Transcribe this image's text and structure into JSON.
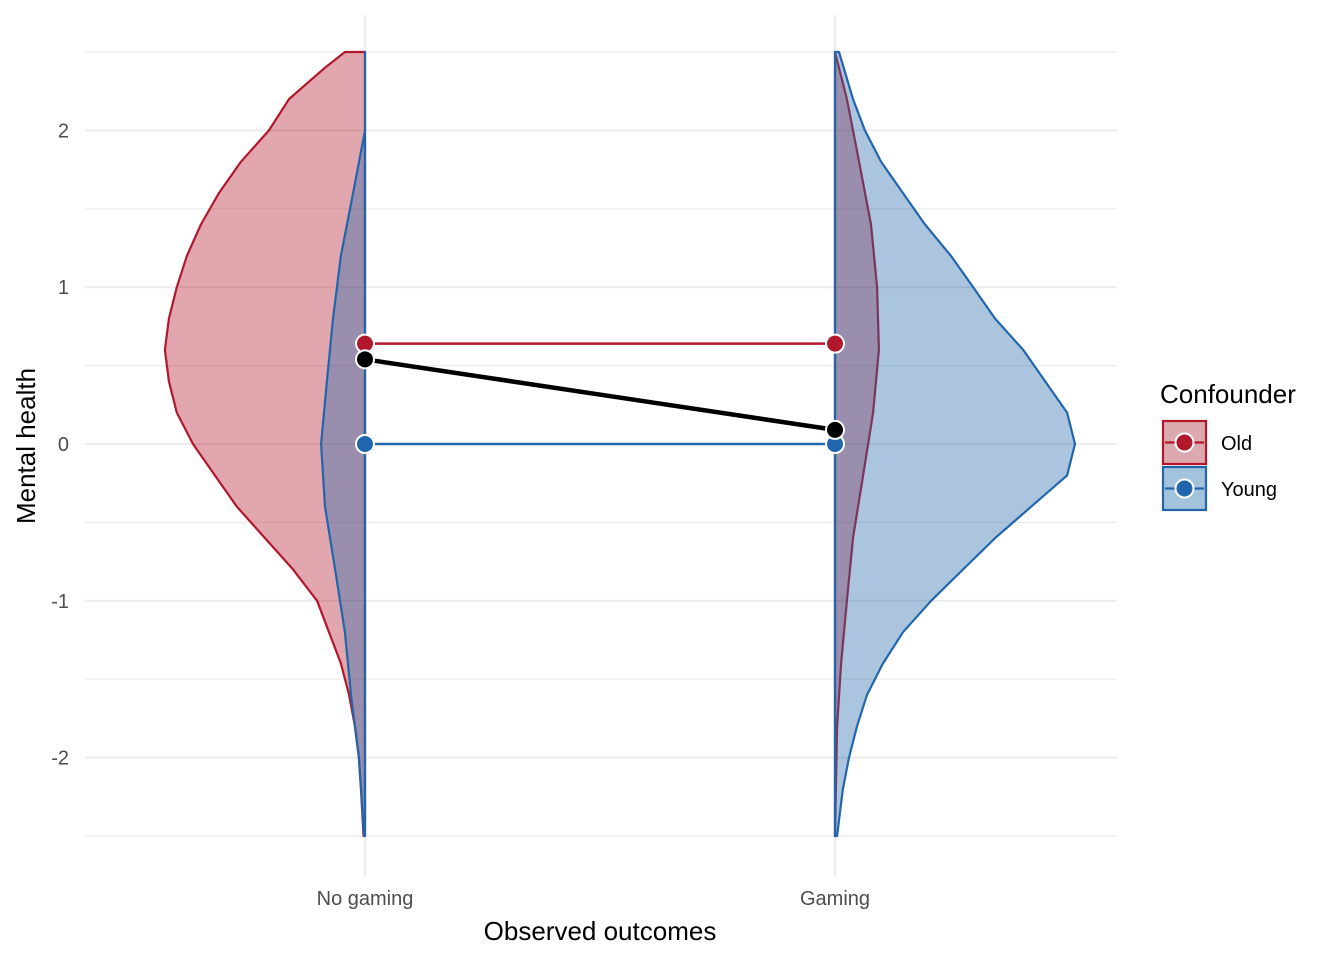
{
  "chart_data": {
    "type": "violin",
    "xlabel": "Observed outcomes",
    "ylabel": "Mental health",
    "categories": [
      "No gaming",
      "Gaming"
    ],
    "ylim": [
      -2.5,
      2.5
    ],
    "yticks": [
      -2,
      -1,
      0,
      1,
      2
    ],
    "grid": true,
    "legend": {
      "title": "Confounder",
      "position": "right",
      "entries": [
        {
          "label": "Old",
          "color": "#b2182b"
        },
        {
          "label": "Young",
          "color": "#2166ac"
        }
      ]
    },
    "series": [
      {
        "name": "Old",
        "color": "#b2182b",
        "fill": "#dca9af",
        "points": [
          0.64,
          0.64
        ]
      },
      {
        "name": "Young",
        "color": "#2166ac",
        "fill": "#a3c2dc",
        "points": [
          0.0,
          0.0
        ]
      }
    ],
    "overall": {
      "color": "#000000",
      "points": [
        0.54,
        0.09
      ]
    },
    "densities": [
      {
        "category": "No gaming",
        "group": "Old",
        "side": "left",
        "profile": [
          [
            2.5,
            0.066
          ],
          [
            2.4,
            0.131
          ],
          [
            2.2,
            0.249
          ],
          [
            2.0,
            0.315
          ],
          [
            1.8,
            0.407
          ],
          [
            1.6,
            0.479
          ],
          [
            1.4,
            0.538
          ],
          [
            1.2,
            0.584
          ],
          [
            1.0,
            0.617
          ],
          [
            0.8,
            0.643
          ],
          [
            0.6,
            0.656
          ],
          [
            0.4,
            0.643
          ],
          [
            0.2,
            0.617
          ],
          [
            0.0,
            0.564
          ],
          [
            -0.2,
            0.492
          ],
          [
            -0.4,
            0.42
          ],
          [
            -0.6,
            0.328
          ],
          [
            -0.8,
            0.236
          ],
          [
            -1.0,
            0.157
          ],
          [
            -1.2,
            0.118
          ],
          [
            -1.4,
            0.079
          ],
          [
            -1.6,
            0.052
          ],
          [
            -1.8,
            0.033
          ],
          [
            -2.0,
            0.02
          ],
          [
            -2.2,
            0.013
          ],
          [
            -2.5,
            0.005
          ]
        ]
      },
      {
        "category": "No gaming",
        "group": "Young",
        "side": "left",
        "profile": [
          [
            2.5,
            0.0
          ],
          [
            2.0,
            0.0
          ],
          [
            1.6,
            0.039
          ],
          [
            1.2,
            0.079
          ],
          [
            0.8,
            0.105
          ],
          [
            0.4,
            0.125
          ],
          [
            0.0,
            0.144
          ],
          [
            -0.4,
            0.131
          ],
          [
            -0.8,
            0.098
          ],
          [
            -1.2,
            0.066
          ],
          [
            -1.6,
            0.046
          ],
          [
            -2.0,
            0.02
          ],
          [
            -2.5,
            0.003
          ]
        ]
      },
      {
        "category": "Gaming",
        "group": "Old",
        "side": "right",
        "profile": [
          [
            2.5,
            0.0
          ],
          [
            2.2,
            0.039
          ],
          [
            1.8,
            0.079
          ],
          [
            1.4,
            0.118
          ],
          [
            1.0,
            0.138
          ],
          [
            0.6,
            0.144
          ],
          [
            0.2,
            0.125
          ],
          [
            -0.2,
            0.092
          ],
          [
            -0.6,
            0.059
          ],
          [
            -1.0,
            0.039
          ],
          [
            -1.4,
            0.02
          ],
          [
            -1.8,
            0.007
          ],
          [
            -2.5,
            0.0
          ]
        ]
      },
      {
        "category": "Gaming",
        "group": "Young",
        "side": "right",
        "profile": [
          [
            2.5,
            0.013
          ],
          [
            2.2,
            0.059
          ],
          [
            2.0,
            0.098
          ],
          [
            1.8,
            0.151
          ],
          [
            1.6,
            0.223
          ],
          [
            1.4,
            0.295
          ],
          [
            1.2,
            0.38
          ],
          [
            1.0,
            0.453
          ],
          [
            0.8,
            0.525
          ],
          [
            0.6,
            0.617
          ],
          [
            0.4,
            0.689
          ],
          [
            0.2,
            0.761
          ],
          [
            0.0,
            0.787
          ],
          [
            -0.2,
            0.761
          ],
          [
            -0.4,
            0.643
          ],
          [
            -0.6,
            0.525
          ],
          [
            -0.8,
            0.42
          ],
          [
            -1.0,
            0.315
          ],
          [
            -1.2,
            0.223
          ],
          [
            -1.4,
            0.157
          ],
          [
            -1.6,
            0.105
          ],
          [
            -1.8,
            0.072
          ],
          [
            -2.0,
            0.046
          ],
          [
            -2.2,
            0.026
          ],
          [
            -2.4,
            0.013
          ],
          [
            -2.5,
            0.007
          ]
        ]
      }
    ]
  }
}
